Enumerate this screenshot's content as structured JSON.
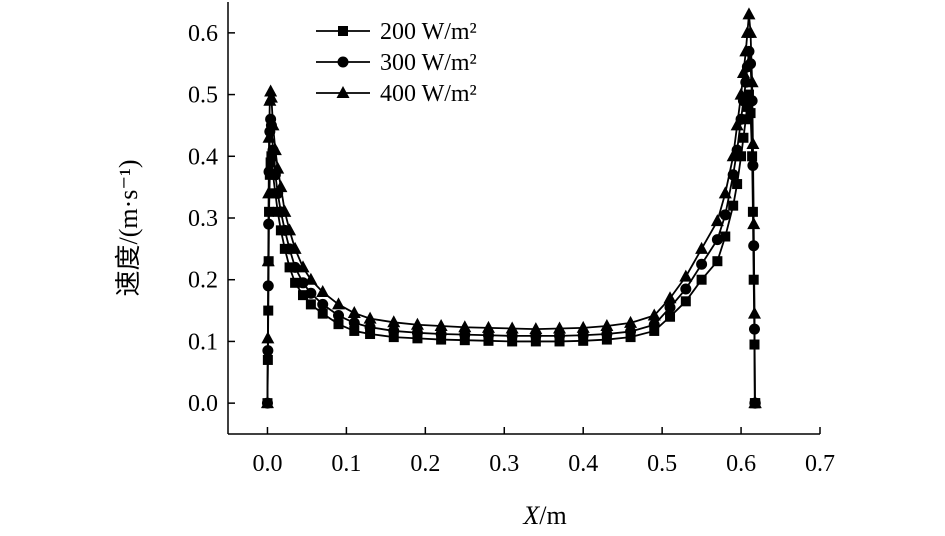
{
  "chart_data": {
    "type": "line",
    "xlabel": {
      "var": "X",
      "unit": "/m"
    },
    "ylabel": "速度/(m·s⁻¹)",
    "xlim": [
      -0.05,
      0.7
    ],
    "ylim": [
      -0.05,
      0.65
    ],
    "xticks": [
      "0.0",
      "0.1",
      "0.2",
      "0.3",
      "0.4",
      "0.5",
      "0.6",
      "0.7"
    ],
    "yticks": [
      "0.0",
      "0.1",
      "0.2",
      "0.3",
      "0.4",
      "0.5",
      "0.6"
    ],
    "grid": false,
    "legend_position": "top-center",
    "series": [
      {
        "name": "200 W/m²",
        "marker": "square",
        "x": [
          0.0,
          0.0005,
          0.001,
          0.0015,
          0.002,
          0.003,
          0.004,
          0.005,
          0.007,
          0.01,
          0.013,
          0.017,
          0.022,
          0.028,
          0.035,
          0.045,
          0.055,
          0.07,
          0.09,
          0.11,
          0.13,
          0.16,
          0.19,
          0.22,
          0.25,
          0.28,
          0.31,
          0.34,
          0.37,
          0.4,
          0.43,
          0.46,
          0.49,
          0.51,
          0.53,
          0.55,
          0.57,
          0.58,
          0.59,
          0.595,
          0.6,
          0.603,
          0.606,
          0.608,
          0.61,
          0.612,
          0.614,
          0.615,
          0.616,
          0.617,
          0.6175,
          0.618
        ],
        "y": [
          0.0,
          0.07,
          0.15,
          0.23,
          0.31,
          0.37,
          0.39,
          0.4,
          0.37,
          0.34,
          0.31,
          0.28,
          0.25,
          0.22,
          0.195,
          0.175,
          0.16,
          0.145,
          0.128,
          0.117,
          0.112,
          0.107,
          0.105,
          0.103,
          0.102,
          0.101,
          0.1,
          0.1,
          0.1,
          0.101,
          0.103,
          0.107,
          0.117,
          0.14,
          0.165,
          0.2,
          0.23,
          0.27,
          0.32,
          0.355,
          0.4,
          0.43,
          0.46,
          0.48,
          0.5,
          0.47,
          0.4,
          0.31,
          0.2,
          0.095,
          0.0,
          0.0
        ]
      },
      {
        "name": "300 W/m²",
        "marker": "circle",
        "x": [
          0.0,
          0.0005,
          0.001,
          0.0015,
          0.002,
          0.003,
          0.004,
          0.005,
          0.007,
          0.01,
          0.013,
          0.017,
          0.022,
          0.028,
          0.035,
          0.045,
          0.055,
          0.07,
          0.09,
          0.11,
          0.13,
          0.16,
          0.19,
          0.22,
          0.25,
          0.28,
          0.31,
          0.34,
          0.37,
          0.4,
          0.43,
          0.46,
          0.49,
          0.51,
          0.53,
          0.55,
          0.57,
          0.58,
          0.59,
          0.595,
          0.6,
          0.603,
          0.606,
          0.608,
          0.61,
          0.612,
          0.614,
          0.615,
          0.616,
          0.617,
          0.6175,
          0.618
        ],
        "y": [
          0.0,
          0.085,
          0.19,
          0.29,
          0.375,
          0.44,
          0.46,
          0.45,
          0.41,
          0.37,
          0.34,
          0.31,
          0.28,
          0.25,
          0.22,
          0.195,
          0.178,
          0.16,
          0.142,
          0.13,
          0.123,
          0.117,
          0.114,
          0.112,
          0.111,
          0.11,
          0.109,
          0.109,
          0.109,
          0.11,
          0.112,
          0.116,
          0.127,
          0.155,
          0.185,
          0.225,
          0.265,
          0.305,
          0.37,
          0.41,
          0.46,
          0.49,
          0.52,
          0.545,
          0.57,
          0.55,
          0.49,
          0.385,
          0.255,
          0.12,
          0.0,
          0.0
        ]
      },
      {
        "name": "400 W/m²",
        "marker": "triangle",
        "x": [
          0.0,
          0.0005,
          0.001,
          0.0015,
          0.002,
          0.003,
          0.004,
          0.005,
          0.007,
          0.01,
          0.013,
          0.017,
          0.022,
          0.028,
          0.035,
          0.045,
          0.055,
          0.07,
          0.09,
          0.11,
          0.13,
          0.16,
          0.19,
          0.22,
          0.25,
          0.28,
          0.31,
          0.34,
          0.37,
          0.4,
          0.43,
          0.46,
          0.49,
          0.51,
          0.53,
          0.55,
          0.57,
          0.58,
          0.59,
          0.595,
          0.6,
          0.603,
          0.606,
          0.608,
          0.61,
          0.612,
          0.614,
          0.615,
          0.616,
          0.617,
          0.6175,
          0.618
        ],
        "y": [
          0.0,
          0.105,
          0.23,
          0.34,
          0.43,
          0.49,
          0.505,
          0.495,
          0.45,
          0.41,
          0.38,
          0.35,
          0.31,
          0.28,
          0.25,
          0.22,
          0.2,
          0.18,
          0.16,
          0.146,
          0.137,
          0.131,
          0.127,
          0.125,
          0.123,
          0.122,
          0.121,
          0.12,
          0.121,
          0.122,
          0.125,
          0.13,
          0.142,
          0.17,
          0.205,
          0.25,
          0.295,
          0.34,
          0.4,
          0.45,
          0.5,
          0.535,
          0.57,
          0.6,
          0.63,
          0.6,
          0.52,
          0.42,
          0.29,
          0.145,
          0.0,
          0.0
        ]
      }
    ]
  }
}
